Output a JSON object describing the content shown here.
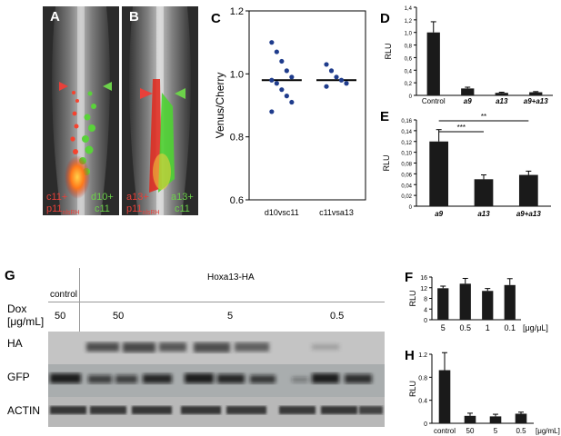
{
  "panel_letters": {
    "A": "A",
    "B": "B",
    "C": "C",
    "D": "D",
    "E": "E",
    "F": "F",
    "G": "G",
    "H": "H"
  },
  "image_A": {
    "labels": {
      "red1": "c11+",
      "red2": "p11",
      "red2_sub": "nlsRH",
      "green1": "d10+",
      "green2": "c11"
    }
  },
  "image_B": {
    "labels": {
      "red1": "a13+",
      "red2": "p11",
      "red2_sub": "nlsRH",
      "green1": "a13+",
      "green2": "c11"
    }
  },
  "colors": {
    "red_marker": "#e8403a",
    "green_marker": "#6cd24a",
    "dot_blue": "#1f3c8c",
    "bar": "#1a1a1a"
  },
  "chart_data": [
    {
      "id": "C",
      "type": "scatter",
      "ylabel": "Venus/Cherry",
      "ylim": [
        0.6,
        1.2
      ],
      "yticks": [
        "0.6",
        "0.8",
        "1.0",
        "1.2"
      ],
      "categories": [
        "d10vsc11",
        "c11vsa13"
      ],
      "series": [
        {
          "values": [
            1.1,
            1.07,
            1.04,
            1.01,
            0.99,
            0.98,
            0.97,
            0.95,
            0.93,
            0.91,
            0.88
          ]
        },
        {
          "values": [
            1.03,
            1.01,
            0.99,
            0.98,
            0.97,
            0.96
          ]
        }
      ],
      "medians": [
        0.98,
        0.98
      ]
    },
    {
      "id": "D",
      "type": "bar",
      "ylabel": "RLU",
      "ylim": [
        0,
        1.4
      ],
      "yticks": [
        "0",
        "0,2",
        "0,4",
        "0,6",
        "0,8",
        "1,0",
        "1,2",
        "1,4"
      ],
      "categories": [
        "Control",
        "a9",
        "a13",
        "a9+a13"
      ],
      "values": [
        1.0,
        0.11,
        0.04,
        0.05
      ],
      "errors": [
        0.17,
        0.02,
        0.01,
        0.01
      ]
    },
    {
      "id": "E",
      "type": "bar",
      "ylabel": "RLU",
      "ylim": [
        0,
        0.16
      ],
      "yticks": [
        "0",
        "0,02",
        "0,04",
        "0,06",
        "0,08",
        "0,10",
        "0,12",
        "0,14",
        "0,16"
      ],
      "categories": [
        "a9",
        "a13",
        "a9+a13"
      ],
      "values": [
        0.12,
        0.05,
        0.058
      ],
      "errors": [
        0.022,
        0.008,
        0.007
      ],
      "annotations": [
        "***",
        "**"
      ]
    },
    {
      "id": "F",
      "type": "bar",
      "ylabel": "RLU",
      "ylim": [
        0,
        16
      ],
      "yticks": [
        "0",
        "4",
        "8",
        "12",
        "16"
      ],
      "categories": [
        "5",
        "0.5",
        "1",
        "0.1"
      ],
      "unit": "[μg/μL]",
      "values": [
        11.8,
        13.5,
        10.8,
        13.0
      ],
      "errors": [
        0.8,
        2.0,
        0.9,
        2.4
      ]
    },
    {
      "id": "H",
      "type": "bar",
      "ylabel": "RLU",
      "ylim": [
        0,
        1.3
      ],
      "yticks": [
        "0",
        "0.4",
        "0.8",
        "1.2"
      ],
      "categories": [
        "control",
        "50",
        "5",
        "0.5"
      ],
      "unit": "[μg/mL]",
      "values": [
        1.0,
        0.14,
        0.13,
        0.18
      ],
      "errors": [
        0.33,
        0.05,
        0.04,
        0.03
      ]
    }
  ],
  "western": {
    "header_control": "control",
    "header_treatment": "Hoxa13-HA",
    "dox_label_line1": "Dox",
    "dox_label_line2": "[μg/mL]",
    "dox_values": [
      "50",
      "50",
      "5",
      "0.5"
    ],
    "row_labels": [
      "HA",
      "GFP",
      "ACTIN"
    ]
  }
}
